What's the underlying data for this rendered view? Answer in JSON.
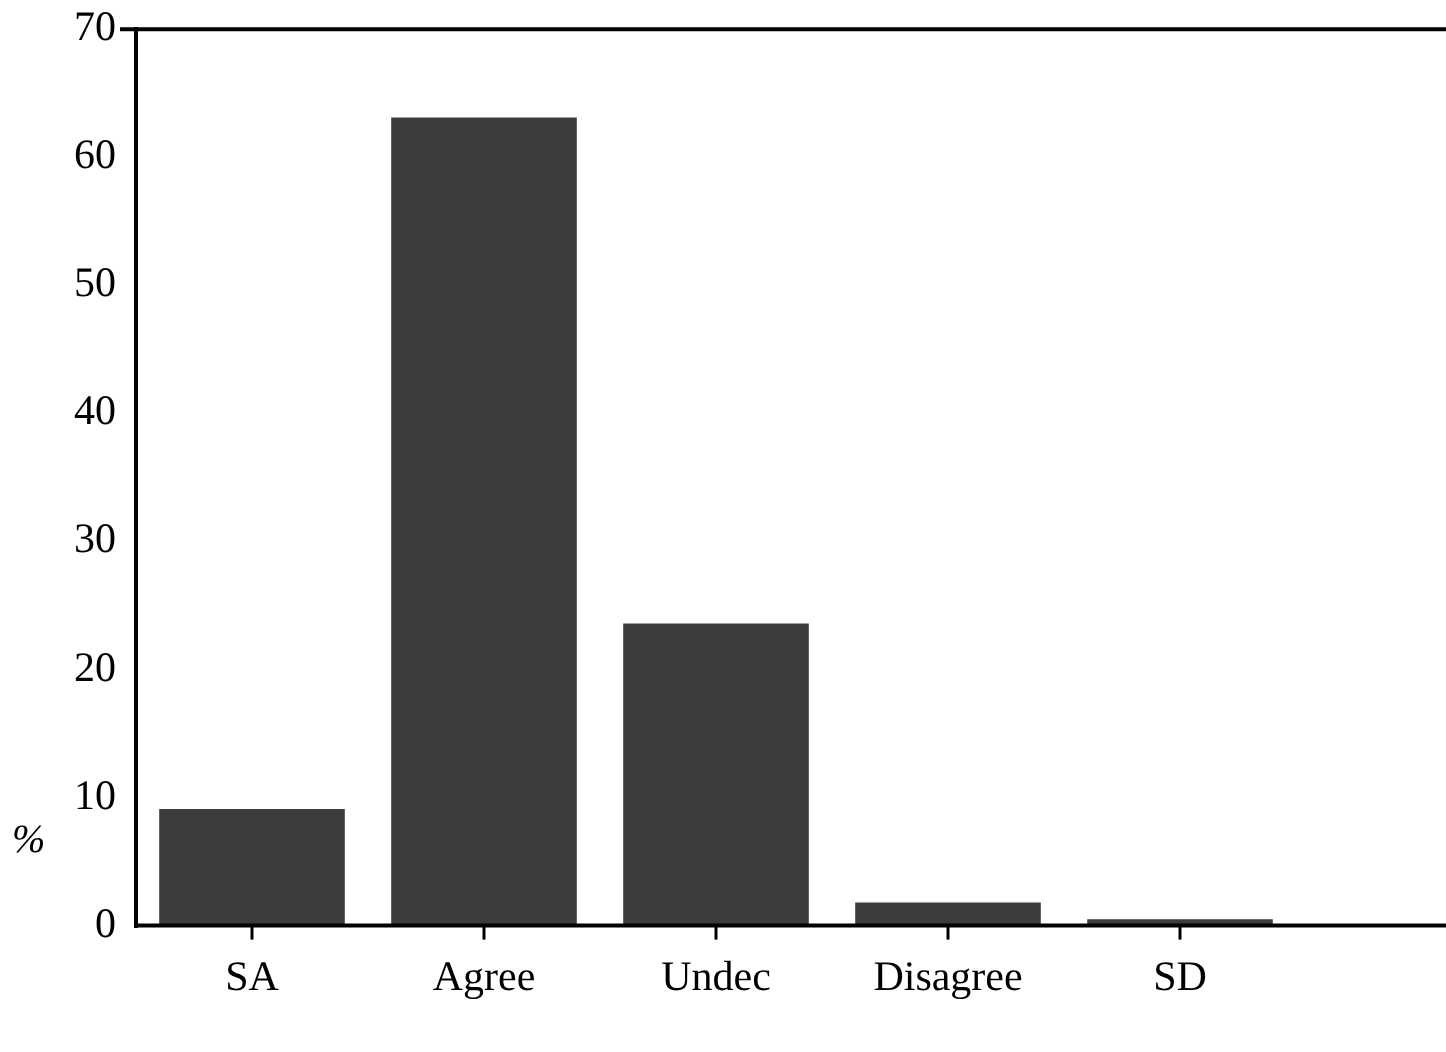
{
  "chart_data": {
    "type": "bar",
    "ylabel": "%",
    "categories": [
      "SA",
      "Agree",
      "Undec",
      "Disagree",
      "SD"
    ],
    "values": [
      9.1,
      63.1,
      23.6,
      1.8,
      0.5
    ],
    "color": "#3c3c3c",
    "ylim": [
      0,
      70
    ],
    "yticks": [
      0,
      10,
      20,
      30,
      40,
      50,
      60,
      70
    ],
    "grid": false,
    "legend": false
  }
}
